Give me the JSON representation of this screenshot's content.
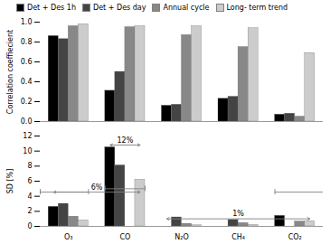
{
  "chart_data": [
    {
      "type": "bar",
      "ylabel": "Correlation coeffiecient",
      "categories": [
        "O₃",
        "CO",
        "N₂O",
        "CH₄",
        "CO₂"
      ],
      "series": [
        {
          "name": "Det + Des 1h",
          "color": "#000000",
          "values": [
            0.86,
            0.31,
            0.16,
            0.23,
            0.07
          ]
        },
        {
          "name": "Det + Des day",
          "color": "#444444",
          "values": [
            0.83,
            0.5,
            0.17,
            0.25,
            0.08
          ]
        },
        {
          "name": "Annual cycle",
          "color": "#888888",
          "values": [
            0.96,
            0.95,
            0.87,
            0.75,
            0.05
          ]
        },
        {
          "name": "Long- term trend",
          "color": "#cccccc",
          "values": [
            0.98,
            0.96,
            0.96,
            0.94,
            0.69
          ]
        }
      ],
      "ylim": [
        0.0,
        1.0
      ],
      "yticks": [
        {
          "value": 0,
          "label": "0.0"
        },
        0.2,
        0.4,
        0.6,
        0.8,
        {
          "value": 1,
          "label": "1.0"
        }
      ],
      "legend": "top-left",
      "tick_labels": "y"
    },
    {
      "type": "bar",
      "ylabel": "SD [%]",
      "categories": [
        "O₃",
        "CO",
        "N₂O",
        "CH₄",
        "CO₂"
      ],
      "series": [
        {
          "name": "Det + Des 1h",
          "color": "#000000",
          "values": [
            2.6,
            10.5,
            0.0,
            0.0,
            1.4
          ]
        },
        {
          "name": "Det + Des day",
          "color": "#444444",
          "values": [
            3.0,
            8.1,
            1.2,
            0.85,
            0.0
          ]
        },
        {
          "name": "Annual cycle",
          "color": "#888888",
          "values": [
            1.3,
            0.0,
            0.35,
            0.45,
            0.65
          ]
        },
        {
          "name": "Long- term trend",
          "color": "#cccccc",
          "values": [
            0.8,
            6.2,
            0.15,
            0.2,
            0.7
          ]
        }
      ],
      "ylim": [
        0,
        12
      ],
      "yticks": [
        0,
        2,
        4,
        6,
        8,
        10,
        12
      ],
      "reference_lines": [
        {
          "y": 4.55,
          "group": "O₃"
        },
        {
          "y": 5.0,
          "group": "CO"
        },
        {
          "y": 4.55,
          "group": "CO₂"
        }
      ],
      "annotations": [
        {
          "text": "6%",
          "y": 4.55,
          "from": "O₃",
          "to": "CO"
        },
        {
          "text": "12%",
          "y": 10.8,
          "from": "CO",
          "to": "CO"
        },
        {
          "text": "1%",
          "y": 1.0,
          "from": "N₂O",
          "to": "CO₂"
        }
      ]
    }
  ]
}
